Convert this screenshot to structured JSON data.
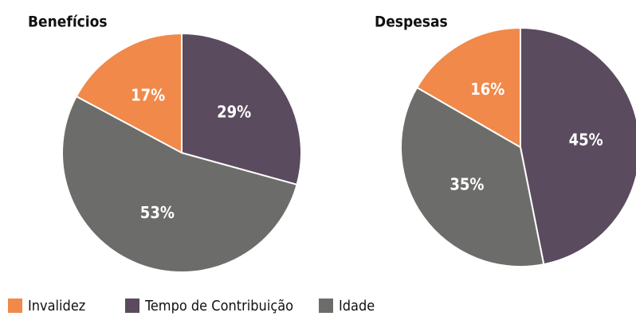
{
  "legend": [
    {
      "name": "Invalidez",
      "color": "#f0894a"
    },
    {
      "name": "Tempo de Contribuição",
      "color": "#5b4b5e"
    },
    {
      "name": "Idade",
      "color": "#6c6c6a"
    }
  ],
  "chart_data": [
    {
      "type": "pie",
      "title": "Benefícios",
      "values": [
        17,
        29,
        53
      ],
      "value_labels": [
        "17%",
        "29%",
        "53%"
      ]
    },
    {
      "type": "pie",
      "title": "Despesas",
      "values": [
        16,
        45,
        35
      ],
      "value_labels": [
        "16%",
        "45%",
        "35%"
      ]
    }
  ]
}
